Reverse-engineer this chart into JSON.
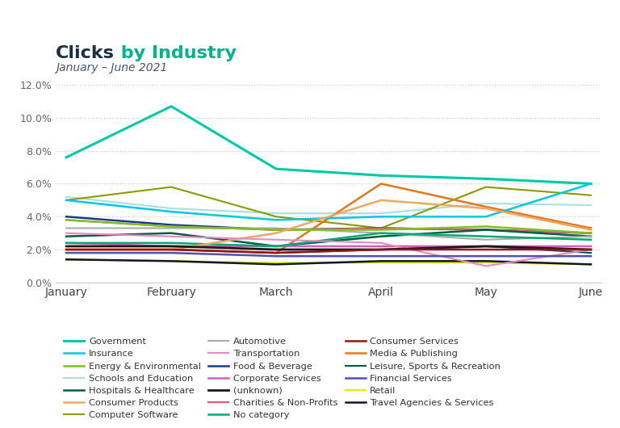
{
  "title_clicks": "Clicks",
  "title_rest": " by Industry",
  "subtitle": "January – June 2021",
  "title_clicks_color": "#1a2e44",
  "title_rest_color": "#00b388",
  "subtitle_color": "#4a5568",
  "months": [
    "January",
    "February",
    "March",
    "April",
    "May",
    "June"
  ],
  "ylim": [
    0.0,
    0.13
  ],
  "yticks": [
    0.0,
    0.02,
    0.04,
    0.06,
    0.08,
    0.1,
    0.12
  ],
  "ytick_labels": [
    "0.0%",
    "2.0%",
    "4.0%",
    "6.0%",
    "8.0%",
    "10.0%",
    "12.0%"
  ],
  "background_color": "#ffffff",
  "series": [
    {
      "name": "Government",
      "color": "#00c9a7",
      "linewidth": 2.2,
      "values": [
        0.076,
        0.107,
        0.069,
        0.065,
        0.063,
        0.06
      ]
    },
    {
      "name": "Schools and Education",
      "color": "#a8dfe0",
      "linewidth": 1.5,
      "values": [
        0.052,
        0.045,
        0.042,
        0.042,
        0.048,
        0.047
      ]
    },
    {
      "name": "Computer Software",
      "color": "#8a9a00",
      "linewidth": 1.5,
      "values": [
        0.05,
        0.058,
        0.04,
        0.033,
        0.058,
        0.053
      ]
    },
    {
      "name": "Food & Beverage",
      "color": "#1a3a8a",
      "linewidth": 1.8,
      "values": [
        0.04,
        0.035,
        0.032,
        0.033,
        0.032,
        0.03
      ]
    },
    {
      "name": "Charities & Non-Profits",
      "color": "#e05575",
      "linewidth": 1.5,
      "values": [
        0.038,
        0.034,
        0.032,
        0.033,
        0.032,
        0.03
      ]
    },
    {
      "name": "Media & Publishing",
      "color": "#e07820",
      "linewidth": 1.8,
      "values": [
        0.02,
        0.02,
        0.018,
        0.06,
        0.046,
        0.033
      ]
    },
    {
      "name": "Retail",
      "color": "#e8e800",
      "linewidth": 1.5,
      "values": [
        0.014,
        0.013,
        0.012,
        0.012,
        0.012,
        0.011
      ]
    },
    {
      "name": "Insurance",
      "color": "#00c8e0",
      "linewidth": 1.8,
      "values": [
        0.05,
        0.043,
        0.038,
        0.04,
        0.04,
        0.06
      ]
    },
    {
      "name": "Hospitals & Healthcare",
      "color": "#006040",
      "linewidth": 1.8,
      "values": [
        0.028,
        0.03,
        0.022,
        0.028,
        0.032,
        0.028
      ]
    },
    {
      "name": "Automotive",
      "color": "#aaaaaa",
      "linewidth": 1.5,
      "values": [
        0.033,
        0.033,
        0.033,
        0.03,
        0.026,
        0.028
      ]
    },
    {
      "name": "Corporate Services",
      "color": "#d060c0",
      "linewidth": 1.8,
      "values": [
        0.024,
        0.022,
        0.022,
        0.022,
        0.022,
        0.022
      ]
    },
    {
      "name": "No category",
      "color": "#00a878",
      "linewidth": 1.8,
      "values": [
        0.024,
        0.024,
        0.022,
        0.03,
        0.028,
        0.026
      ]
    },
    {
      "name": "Leisure, Sports & Recreation",
      "color": "#005858",
      "linewidth": 1.5,
      "values": [
        0.02,
        0.02,
        0.018,
        0.02,
        0.022,
        0.018
      ]
    },
    {
      "name": "Travel Agencies & Services",
      "color": "#101828",
      "linewidth": 1.8,
      "values": [
        0.014,
        0.013,
        0.011,
        0.013,
        0.013,
        0.011
      ]
    },
    {
      "name": "Energy & Environmental",
      "color": "#80c020",
      "linewidth": 1.8,
      "values": [
        0.038,
        0.034,
        0.032,
        0.032,
        0.034,
        0.03
      ]
    },
    {
      "name": "Consumer Products",
      "color": "#f0a860",
      "linewidth": 1.8,
      "values": [
        0.02,
        0.02,
        0.03,
        0.05,
        0.045,
        0.032
      ]
    },
    {
      "name": "Transportation",
      "color": "#e888c0",
      "linewidth": 1.5,
      "values": [
        0.03,
        0.028,
        0.026,
        0.024,
        0.01,
        0.02
      ]
    },
    {
      "name": "(unknown)",
      "color": "#181818",
      "linewidth": 2.0,
      "values": [
        0.022,
        0.022,
        0.02,
        0.02,
        0.022,
        0.02
      ]
    },
    {
      "name": "Consumer Services",
      "color": "#a01010",
      "linewidth": 1.8,
      "values": [
        0.02,
        0.02,
        0.018,
        0.02,
        0.02,
        0.02
      ]
    },
    {
      "name": "Financial Services",
      "color": "#5050b0",
      "linewidth": 1.8,
      "values": [
        0.018,
        0.018,
        0.016,
        0.016,
        0.016,
        0.016
      ]
    }
  ],
  "legend_order": [
    "Government",
    "Insurance",
    "Energy & Environmental",
    "Schools and Education",
    "Hospitals & Healthcare",
    "Consumer Products",
    "Computer Software",
    "Automotive",
    "Transportation",
    "Food & Beverage",
    "Corporate Services",
    "(unknown)",
    "Charities & Non-Profits",
    "No category",
    "Consumer Services",
    "Media & Publishing",
    "Leisure, Sports & Recreation",
    "Financial Services",
    "Retail",
    "Travel Agencies & Services"
  ]
}
